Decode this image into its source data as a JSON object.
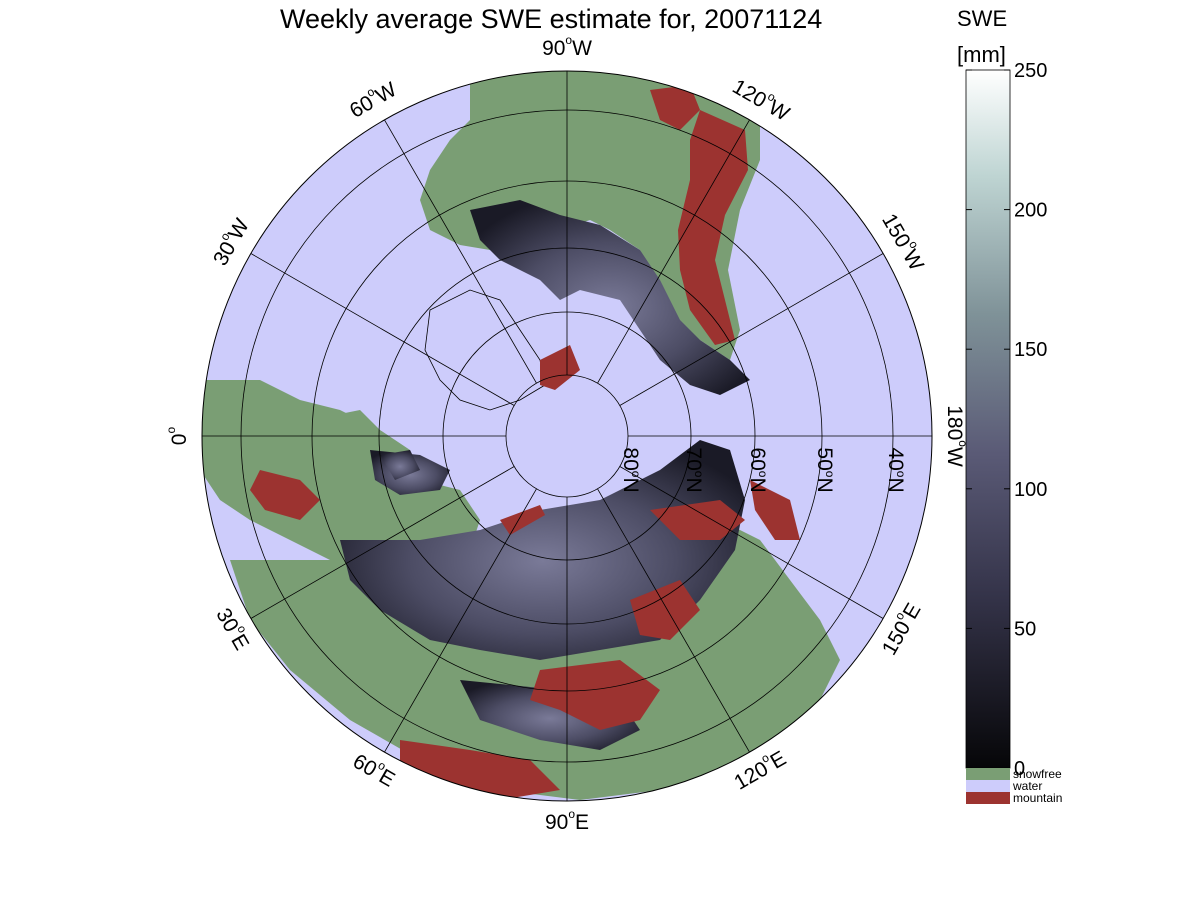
{
  "title": "Weekly average SWE estimate for, 20071124",
  "colors": {
    "water": "#cdccfb",
    "snowfree": "#7a9e74",
    "mountain": "#9c3330",
    "snow_low": "#0b0b12",
    "snow_mid": "#565672",
    "snow_high": "#ffffff"
  },
  "map": {
    "projection": "north polar stereographic",
    "longitude_labels": [
      {
        "deg": "90",
        "suffix": "W"
      },
      {
        "deg": "60",
        "suffix": "W"
      },
      {
        "deg": "120",
        "suffix": "W"
      },
      {
        "deg": "30",
        "suffix": "W"
      },
      {
        "deg": "150",
        "suffix": "W"
      },
      {
        "deg": "0",
        "suffix": ""
      },
      {
        "deg": "180",
        "suffix": "W"
      },
      {
        "deg": "30",
        "suffix": "E"
      },
      {
        "deg": "150",
        "suffix": "E"
      },
      {
        "deg": "60",
        "suffix": "E"
      },
      {
        "deg": "120",
        "suffix": "E"
      },
      {
        "deg": "90",
        "suffix": "E"
      }
    ],
    "latitude_labels": [
      {
        "deg": "80",
        "suffix": "N"
      },
      {
        "deg": "70",
        "suffix": "N"
      },
      {
        "deg": "60",
        "suffix": "N"
      },
      {
        "deg": "50",
        "suffix": "N"
      },
      {
        "deg": "40",
        "suffix": "N"
      }
    ]
  },
  "colorbar": {
    "title": "SWE",
    "unit": "[mm]",
    "min": 0,
    "max": 250,
    "ticks": [
      "0",
      "50",
      "100",
      "150",
      "200",
      "250"
    ],
    "legend": [
      {
        "label": "snowfree",
        "color": "#7a9e74"
      },
      {
        "label": "water",
        "color": "#cdccfb"
      },
      {
        "label": "mountain",
        "color": "#9c3330"
      }
    ]
  }
}
